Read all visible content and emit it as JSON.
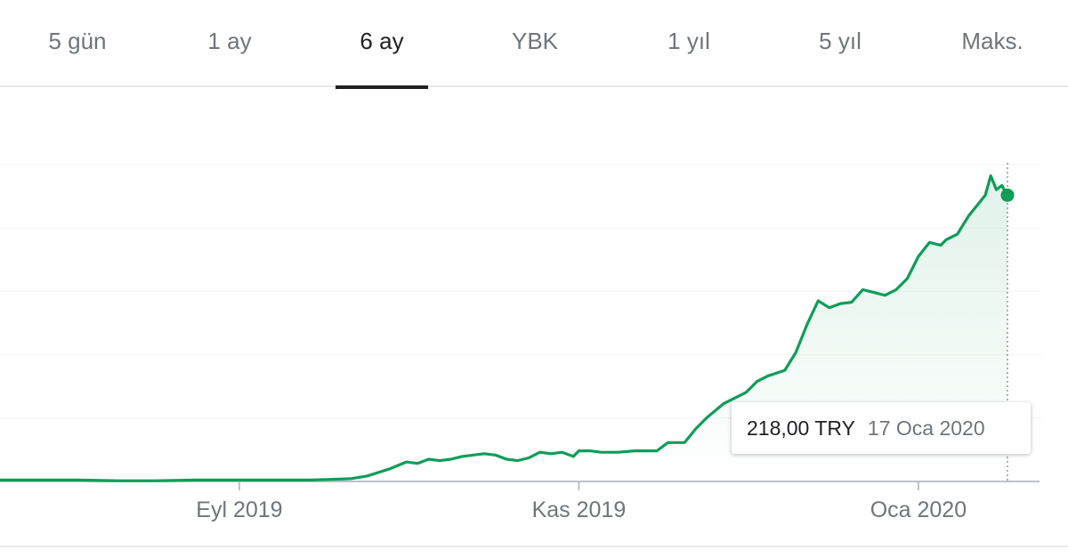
{
  "tabs": [
    {
      "label": "5 gün",
      "active": false
    },
    {
      "label": "1 ay",
      "active": false
    },
    {
      "label": "6 ay",
      "active": true
    },
    {
      "label": "YBK",
      "active": false
    },
    {
      "label": "1 yıl",
      "active": false
    },
    {
      "label": "5 yıl",
      "active": false
    },
    {
      "label": "Maks.",
      "active": false
    }
  ],
  "tooltip": {
    "value": "218,00 TRY",
    "date": "17 Oca 2020"
  },
  "colors": {
    "line": "#0f9d58",
    "fill": "#e6f4ea",
    "grid": "#f1f3f4",
    "axis": "#bdc1c6"
  },
  "chart_data": {
    "type": "area",
    "x_ticks": [
      "Eyl 2019",
      "Kas 2019",
      "Oca 2020"
    ],
    "x_range": [
      "2019-07-20",
      "2020-01-21"
    ],
    "ylim": [
      12,
      240
    ],
    "grid": true,
    "x": [
      "2019-07-20",
      "2019-07-27",
      "2019-08-03",
      "2019-08-10",
      "2019-08-17",
      "2019-08-24",
      "2019-08-31",
      "2019-09-07",
      "2019-09-14",
      "2019-09-21",
      "2019-09-24",
      "2019-09-28",
      "2019-10-01",
      "2019-10-03",
      "2019-10-05",
      "2019-10-07",
      "2019-10-09",
      "2019-10-11",
      "2019-10-13",
      "2019-10-15",
      "2019-10-17",
      "2019-10-19",
      "2019-10-21",
      "2019-10-23",
      "2019-10-25",
      "2019-10-27",
      "2019-10-29",
      "2019-10-31",
      "2019-11-01",
      "2019-11-03",
      "2019-11-05",
      "2019-11-08",
      "2019-11-11",
      "2019-11-13",
      "2019-11-15",
      "2019-11-17",
      "2019-11-20",
      "2019-11-22",
      "2019-11-24",
      "2019-11-27",
      "2019-11-29",
      "2019-12-01",
      "2019-12-03",
      "2019-12-05",
      "2019-12-08",
      "2019-12-10",
      "2019-12-12",
      "2019-12-14",
      "2019-12-16",
      "2019-12-18",
      "2019-12-20",
      "2019-12-22",
      "2019-12-24",
      "2019-12-26",
      "2019-12-28",
      "2019-12-30",
      "2020-01-01",
      "2020-01-03",
      "2020-01-05",
      "2020-01-06",
      "2020-01-08",
      "2020-01-10",
      "2020-01-11",
      "2020-01-13",
      "2020-01-14",
      "2020-01-15",
      "2020-01-16",
      "2020-01-17"
    ],
    "values": [
      13,
      13,
      13,
      12.5,
      12.5,
      13,
      13,
      13,
      13,
      14,
      16,
      21,
      26,
      25,
      28,
      27,
      28,
      30,
      31,
      32,
      31,
      28,
      27,
      29,
      33,
      32,
      33,
      30,
      34,
      34,
      33,
      33,
      34,
      34,
      34,
      40,
      40,
      50,
      58,
      68,
      72,
      76,
      84,
      88,
      92,
      105,
      125,
      142,
      137,
      140,
      141,
      150,
      148,
      146,
      150,
      158,
      174,
      184,
      182,
      186,
      190,
      203,
      208,
      218,
      232,
      222,
      225,
      218
    ]
  }
}
